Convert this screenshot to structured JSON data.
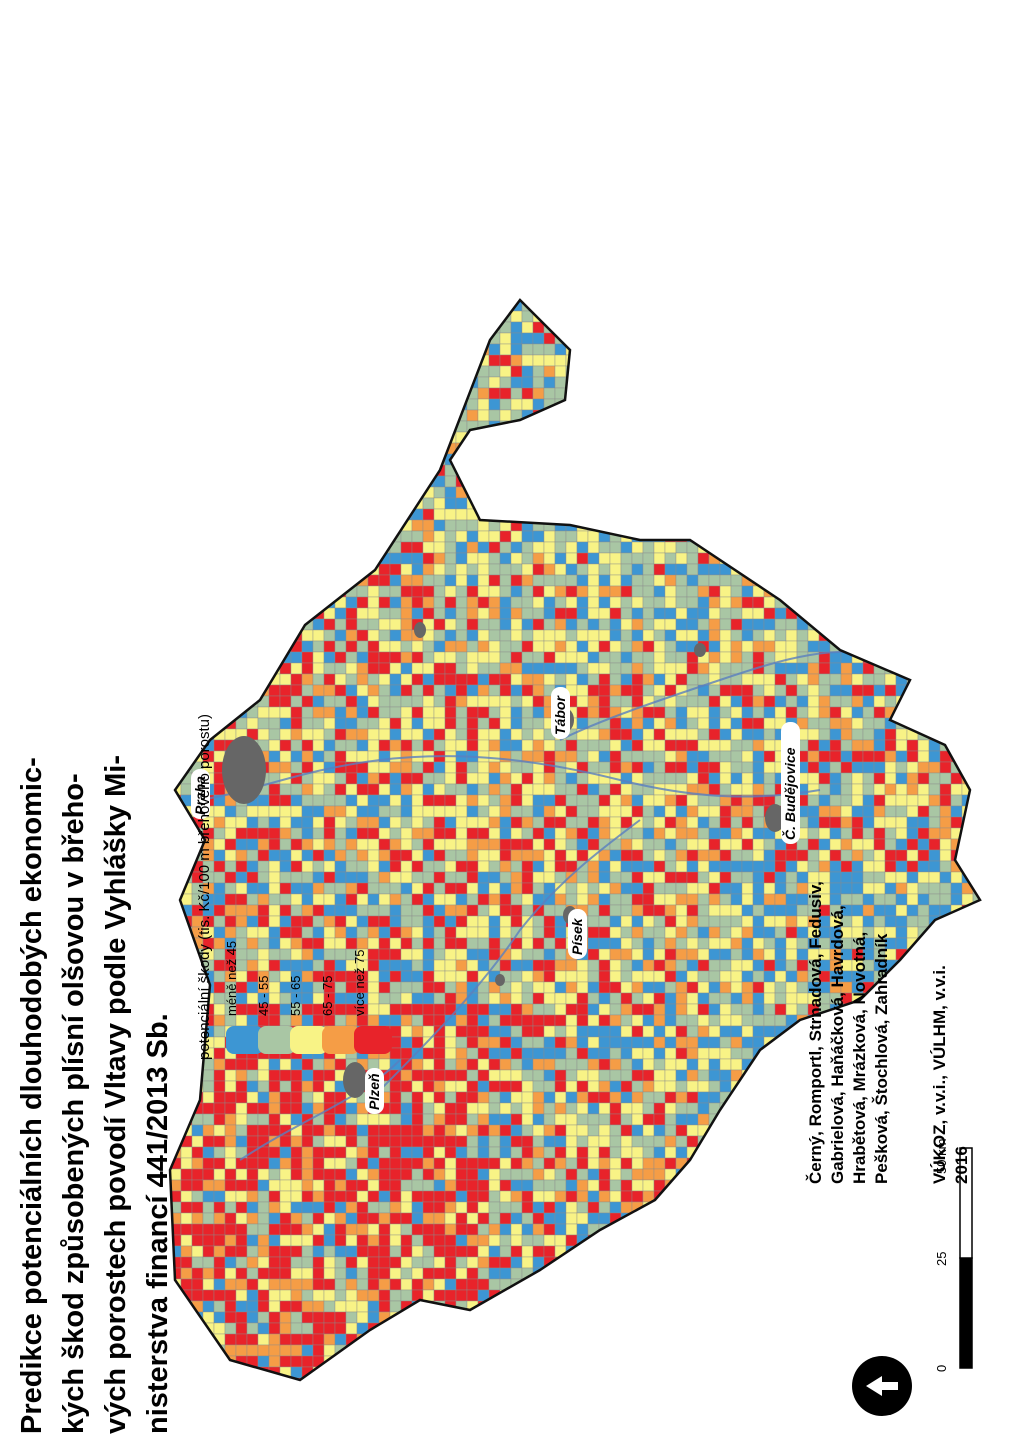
{
  "title": {
    "line1": "Predikce potenciálních dlouhodobých ekonomic-",
    "line2": "kých škod způsobených plísní olšovou v břeho-",
    "line3": "vých porostech povodí Vltavy podle Vyhlášky Mi-",
    "line4": "nisterstva financí 441/2013 Sb."
  },
  "legend": {
    "title": "potenciální škody (tis. Kč/100 m břehového porostu)",
    "classes": [
      {
        "label": "méně než 45",
        "color": "#3d96d3"
      },
      {
        "label": "45 - 55",
        "color": "#a9c6a4"
      },
      {
        "label": "55 - 65",
        "color": "#f8f386"
      },
      {
        "label": "65 - 75",
        "color": "#f59d46"
      },
      {
        "label": "více než 75",
        "color": "#e8232a"
      }
    ]
  },
  "cities": [
    {
      "name": "Praha"
    },
    {
      "name": "Tábor"
    },
    {
      "name": "Č. Budějovice"
    },
    {
      "name": "Písek"
    },
    {
      "name": "Plzeň"
    }
  ],
  "scale_bar": {
    "ticks": [
      "0",
      "25",
      "50 km"
    ]
  },
  "north_arrow": {
    "icon": "north-arrow-icon"
  },
  "credits": {
    "authors": [
      "Černý, Romportl, Strnadová, Fedusiv,",
      "Gabrielová, Haňáčková, Havrdová,",
      "Hrabětová, Mrázková, Novotná,",
      "Pešková, Štochlová, Zahradník"
    ],
    "institutions": "VÚKOZ, v.v.i., VÚLHM, v.v.i.",
    "year": "2016"
  }
}
